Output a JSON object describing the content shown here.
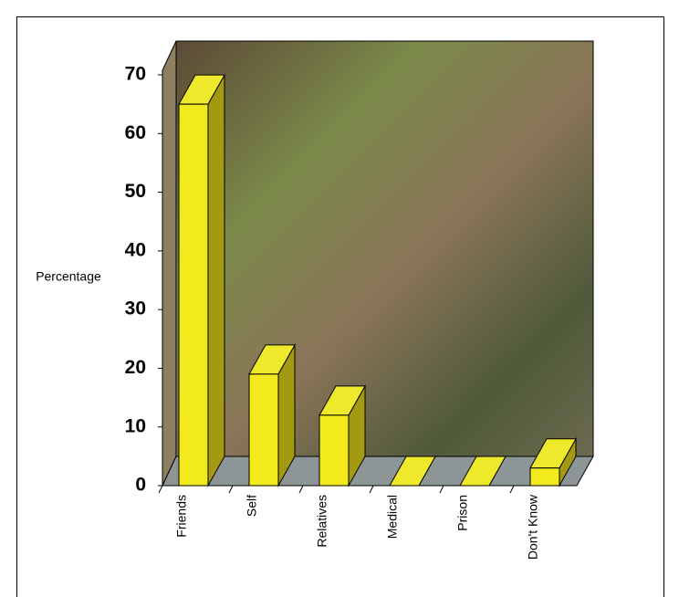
{
  "chart_data": {
    "type": "bar3d",
    "y_label": "Percentage",
    "categories": [
      "Friends",
      "Self",
      "Relatives",
      "Medical",
      "Prison",
      "Don't Know"
    ],
    "values": [
      65,
      19,
      12,
      0,
      0,
      3
    ],
    "color": "#f2ea1c",
    "ylim": [
      0,
      70
    ],
    "yticks": [
      0,
      10,
      20,
      30,
      40,
      50,
      60,
      70
    ]
  }
}
